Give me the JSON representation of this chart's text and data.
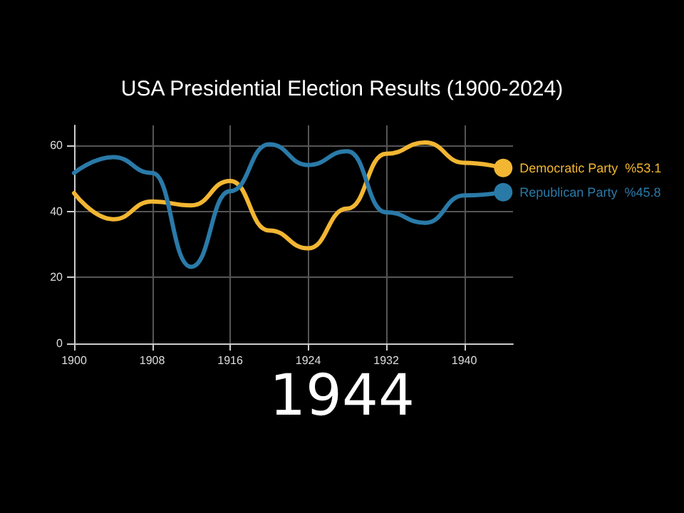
{
  "chart_data": {
    "type": "line",
    "title": "USA Presidential Election Results (1900-2024)",
    "annotations": [
      "1944"
    ],
    "x": [
      1900,
      1904,
      1908,
      1912,
      1916,
      1920,
      1924,
      1928,
      1932,
      1936,
      1940,
      1944
    ],
    "series": [
      {
        "name": "Democratic Party",
        "color": "#f2b632",
        "values": [
          45.5,
          37.6,
          43.0,
          41.8,
          49.2,
          34.2,
          28.8,
          40.8,
          57.4,
          60.8,
          54.7,
          53.1
        ],
        "value_labels": [
          null,
          null,
          null,
          null,
          null,
          null,
          null,
          null,
          null,
          null,
          null,
          "%53.1"
        ]
      },
      {
        "name": "Republican Party",
        "color": "#2a7aa8",
        "values": [
          51.6,
          56.4,
          51.6,
          23.2,
          46.1,
          60.3,
          54.0,
          58.2,
          39.7,
          36.5,
          44.8,
          45.8
        ],
        "value_labels": [
          null,
          null,
          null,
          null,
          null,
          null,
          null,
          null,
          null,
          null,
          null,
          "%45.8"
        ]
      }
    ],
    "xlim": [
      1900,
      1945
    ],
    "xticks": [
      1900,
      1908,
      1916,
      1924,
      1932,
      1940
    ],
    "ylim": [
      0,
      66
    ],
    "yticks": [
      0,
      20,
      40,
      60
    ],
    "grid": true,
    "line_style": "solid"
  }
}
